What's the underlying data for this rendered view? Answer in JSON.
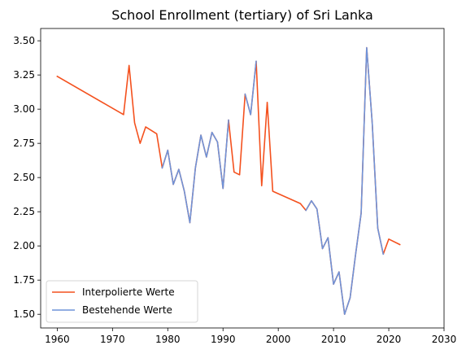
{
  "chart_data": {
    "type": "line",
    "title": "School Enrollment (tertiary) of Sri Lanka",
    "xlabel": "",
    "ylabel": "",
    "xlim": [
      1957,
      2030
    ],
    "ylim": [
      1.4,
      3.59
    ],
    "xticks": [
      1960,
      1970,
      1980,
      1990,
      2000,
      2010,
      2020,
      2030
    ],
    "yticks": [
      1.5,
      1.75,
      2.0,
      2.25,
      2.5,
      2.75,
      3.0,
      3.25,
      3.5
    ],
    "grid": false,
    "legend_position": "lower-left",
    "series": [
      {
        "name": "Interpolierte Werte",
        "color": "#f4511e",
        "x": [
          1960,
          1972,
          1973,
          1974,
          1975,
          1976,
          1978,
          1979,
          1980,
          1981,
          1982,
          1983,
          1984,
          1985,
          1986,
          1987,
          1988,
          1989,
          1990,
          1991,
          1992,
          1993,
          1994,
          1995,
          1996,
          1997,
          1998,
          1999,
          2004,
          2005,
          2006,
          2007,
          2008,
          2009,
          2010,
          2011,
          2012,
          2013,
          2014,
          2015,
          2016,
          2017,
          2018,
          2019,
          2020,
          2022
        ],
        "y": [
          3.24,
          2.96,
          3.32,
          2.9,
          2.75,
          2.87,
          2.82,
          2.57,
          2.7,
          2.45,
          2.56,
          2.4,
          2.17,
          2.57,
          2.81,
          2.65,
          2.83,
          2.76,
          2.42,
          2.92,
          2.54,
          2.52,
          3.11,
          2.96,
          3.35,
          2.44,
          3.05,
          2.4,
          2.31,
          2.26,
          2.33,
          2.27,
          1.98,
          2.06,
          1.72,
          1.81,
          1.5,
          1.62,
          1.94,
          2.24,
          3.45,
          2.9,
          2.13,
          1.94,
          2.05,
          2.01
        ]
      },
      {
        "name": "Bestehende Werte",
        "color": "#6f93d8",
        "segments": [
          {
            "x": [
              1979,
              1980,
              1981,
              1982,
              1983,
              1984,
              1985,
              1986,
              1987,
              1988,
              1989,
              1990,
              1991
            ],
            "y": [
              2.57,
              2.7,
              2.45,
              2.56,
              2.4,
              2.17,
              2.57,
              2.81,
              2.65,
              2.83,
              2.76,
              2.42,
              2.92
            ]
          },
          {
            "x": [
              1994,
              1995,
              1996
            ],
            "y": [
              3.11,
              2.96,
              3.35
            ]
          },
          {
            "x": [
              2005,
              2006,
              2007,
              2008,
              2009,
              2010,
              2011,
              2012,
              2013,
              2014,
              2015,
              2016,
              2017,
              2018,
              2019
            ],
            "y": [
              2.26,
              2.33,
              2.27,
              1.98,
              2.06,
              1.72,
              1.81,
              1.5,
              1.62,
              1.94,
              2.24,
              3.45,
              2.9,
              2.13,
              1.94
            ]
          }
        ]
      }
    ]
  }
}
